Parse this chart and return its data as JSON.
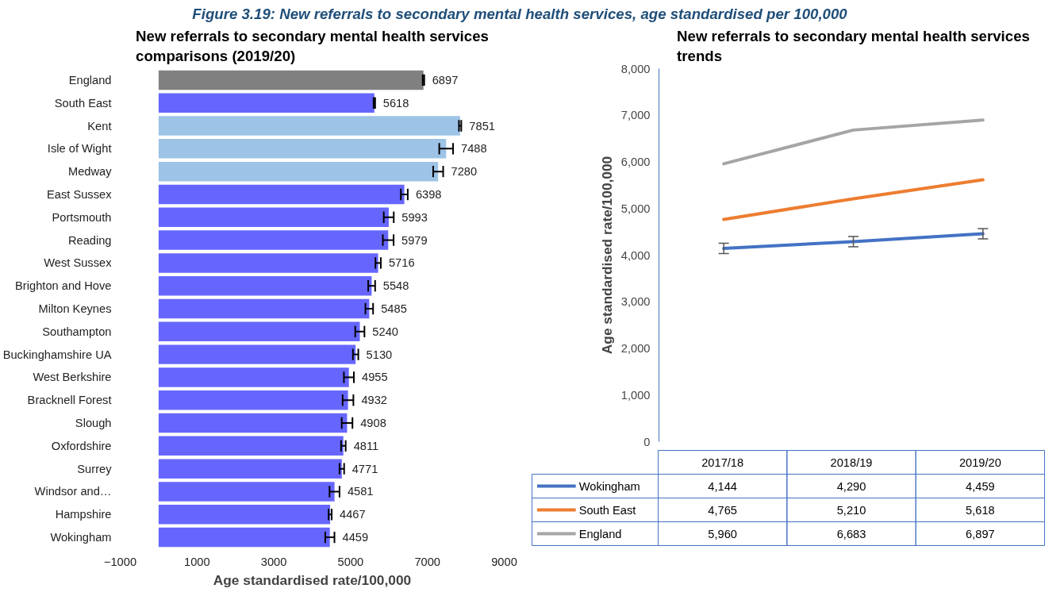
{
  "chart_data": [
    {
      "type": "bar",
      "orientation": "horizontal",
      "title": "New referrals to secondary mental health services comparisons (2019/20)",
      "xlabel": "Age standardised rate/100,000",
      "annotations": [
        "Figure 3.19: New referrals to secondary mental health services, age standardised per 100,000"
      ],
      "categories": [
        "England",
        "South East",
        "Kent",
        "Isle of Wight",
        "Medway",
        "East Sussex",
        "Portsmouth",
        "Reading",
        "West Sussex",
        "Brighton and Hove",
        "Milton Keynes",
        "Southampton",
        "Buckinghamshire UA",
        "West Berkshire",
        "Bracknell Forest",
        "Slough",
        "Oxfordshire",
        "Surrey",
        "Windsor and…",
        "Hampshire",
        "Wokingham"
      ],
      "values": [
        6897,
        5618,
        7851,
        7488,
        7280,
        6398,
        5993,
        5979,
        5716,
        5548,
        5485,
        5240,
        5130,
        4955,
        4932,
        4908,
        4811,
        4771,
        4581,
        4467,
        4459
      ],
      "errors": [
        20,
        20,
        30,
        180,
        130,
        90,
        130,
        140,
        70,
        90,
        100,
        120,
        70,
        130,
        140,
        140,
        60,
        60,
        130,
        40,
        120
      ],
      "colors": [
        "#808080",
        "#6666ff",
        "#9dc3e6",
        "#9dc3e6",
        "#9dc3e6",
        "#6666ff",
        "#6666ff",
        "#6666ff",
        "#6666ff",
        "#6666ff",
        "#6666ff",
        "#6666ff",
        "#6666ff",
        "#6666ff",
        "#6666ff",
        "#6666ff",
        "#6666ff",
        "#6666ff",
        "#6666ff",
        "#6666ff",
        "#6666ff"
      ],
      "xlim": [
        -1000,
        9000
      ],
      "xticks": [
        -1000,
        1000,
        3000,
        5000,
        7000,
        9000
      ],
      "data_labels": true,
      "grid": false
    },
    {
      "type": "line",
      "title": "New referrals to secondary mental health services trends",
      "ylabel": "Age standardised rate/100,000",
      "categories": [
        "2017/18",
        "2018/19",
        "2019/20"
      ],
      "series": [
        {
          "name": "Wokingham",
          "color": "#4472c4",
          "values": [
            4144,
            4290,
            4459
          ],
          "errors": [
            110,
            110,
            110
          ],
          "value_labels": [
            "4,144",
            "4,290",
            "4,459"
          ]
        },
        {
          "name": "South East",
          "color": "#ed7d31",
          "values": [
            4765,
            5210,
            5618
          ],
          "value_labels": [
            "4,765",
            "5,210",
            "5,618"
          ]
        },
        {
          "name": "England",
          "color": "#a5a5a5",
          "values": [
            5960,
            6683,
            6897
          ],
          "value_labels": [
            "5,960",
            "6,683",
            "6,897"
          ]
        }
      ],
      "ylim": [
        0,
        8000
      ],
      "yticks": [
        0,
        {
          "value": 1000,
          "label": "1,000"
        },
        {
          "value": 2000,
          "label": "2,000"
        },
        {
          "value": 3000,
          "label": "3,000"
        },
        {
          "value": 4000,
          "label": "4,000"
        },
        {
          "value": 5000,
          "label": "5,000"
        },
        {
          "value": 6000,
          "label": "6,000"
        },
        {
          "value": 7000,
          "label": "7,000"
        },
        {
          "value": 8000,
          "label": "8,000"
        }
      ],
      "legend": "bottom",
      "grid": false
    }
  ]
}
